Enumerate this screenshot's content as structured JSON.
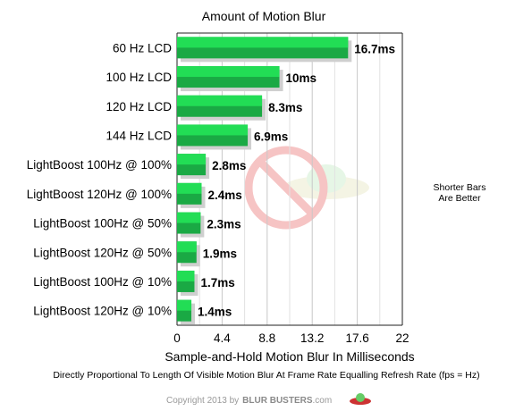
{
  "chart_data": {
    "type": "bar",
    "orientation": "horizontal",
    "title": "Amount of Motion Blur",
    "xlabel": "Sample-and-Hold Motion Blur In Milliseconds",
    "subtitle": "Directly Proportional To Length Of Visible Motion Blur At Frame Rate Equalling Refresh Rate (fps = Hz)",
    "categories": [
      "60 Hz LCD",
      "100 Hz LCD",
      "120 Hz LCD",
      "144 Hz LCD",
      "LightBoost 100Hz @ 100%",
      "LightBoost 120Hz @ 100%",
      "LightBoost 100Hz @ 50%",
      "LightBoost 120Hz @ 50%",
      "LightBoost 100Hz @ 10%",
      "LightBoost 120Hz @ 10%"
    ],
    "values": [
      16.7,
      10,
      8.3,
      6.9,
      2.8,
      2.4,
      2.3,
      1.9,
      1.7,
      1.4
    ],
    "value_labels": [
      "16.7ms",
      "10ms",
      "8.3ms",
      "6.9ms",
      "2.8ms",
      "2.4ms",
      "2.3ms",
      "1.9ms",
      "1.7ms",
      "1.4ms"
    ],
    "xlim": [
      0,
      22
    ],
    "xticks": [
      "0",
      "4.4",
      "8.8",
      "13.2",
      "17.6",
      "22"
    ],
    "grid": true,
    "legend": null,
    "bar_color": "#22dd55",
    "bar_color_dark": "#1aa944",
    "annotation": [
      "Shorter Bars",
      "Are Better"
    ]
  },
  "footer": {
    "copyright": "Copyright 2013 by",
    "brand": "BLUR BUSTERS",
    "domain": ".com"
  }
}
